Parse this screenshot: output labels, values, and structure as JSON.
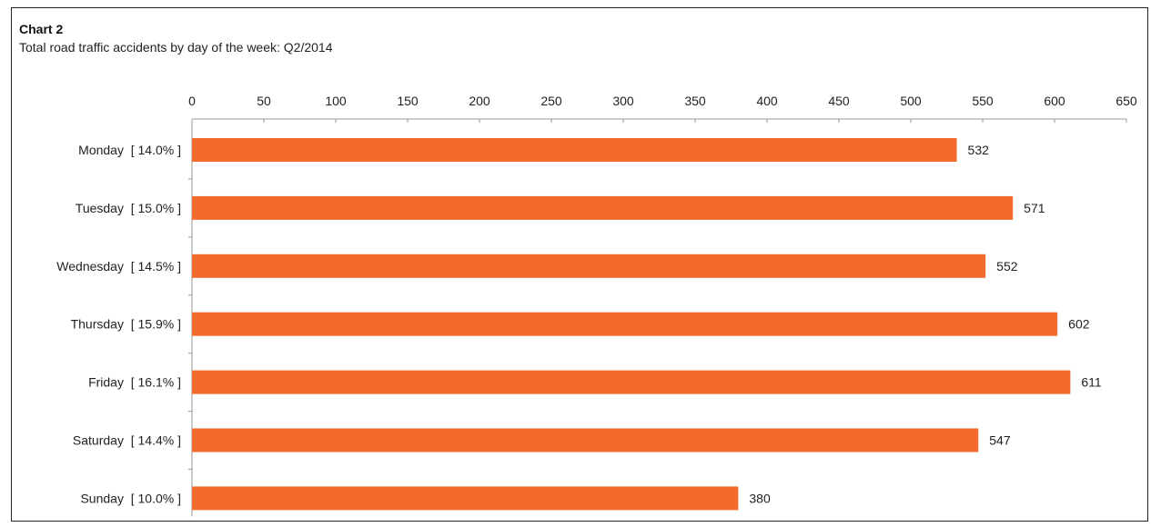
{
  "chart_data": {
    "type": "bar",
    "orientation": "horizontal",
    "title": "Chart 2",
    "subtitle": "Total road traffic accidents by day of the week: Q2/2014",
    "categories": [
      "Monday  [ 14.0% ]",
      "Tuesday  [ 15.0% ]",
      "Wednesday  [ 14.5% ]",
      "Thursday  [ 15.9% ]",
      "Friday  [ 16.1% ]",
      "Saturday  [ 14.4% ]",
      "Sunday  [ 10.0% ]"
    ],
    "values": [
      532,
      571,
      552,
      602,
      611,
      547,
      380
    ],
    "x_ticks": [
      0,
      50,
      100,
      150,
      200,
      250,
      300,
      350,
      400,
      450,
      500,
      550,
      600,
      650
    ],
    "xlim": [
      0,
      650
    ],
    "axis_position": "top",
    "grid": false,
    "legend": "none",
    "bar_color": "#F26B2D"
  }
}
